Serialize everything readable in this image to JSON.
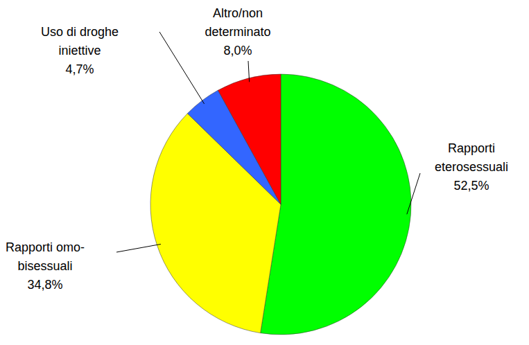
{
  "chart_data": {
    "type": "pie",
    "categories": [
      "Rapporti\neterosessuali",
      "Rapporti omo-\nbisessuali",
      "Uso di droghe\niniettive",
      "Altro/non\ndeterminato"
    ],
    "values": [
      52.5,
      34.8,
      4.7,
      8.0
    ],
    "value_labels": [
      "52,5%",
      "34,8%",
      "4,7%",
      "8,0%"
    ],
    "colors": [
      "#00ff00",
      "#ffff00",
      "#3366ff",
      "#ff0000"
    ],
    "data_labels": true
  }
}
